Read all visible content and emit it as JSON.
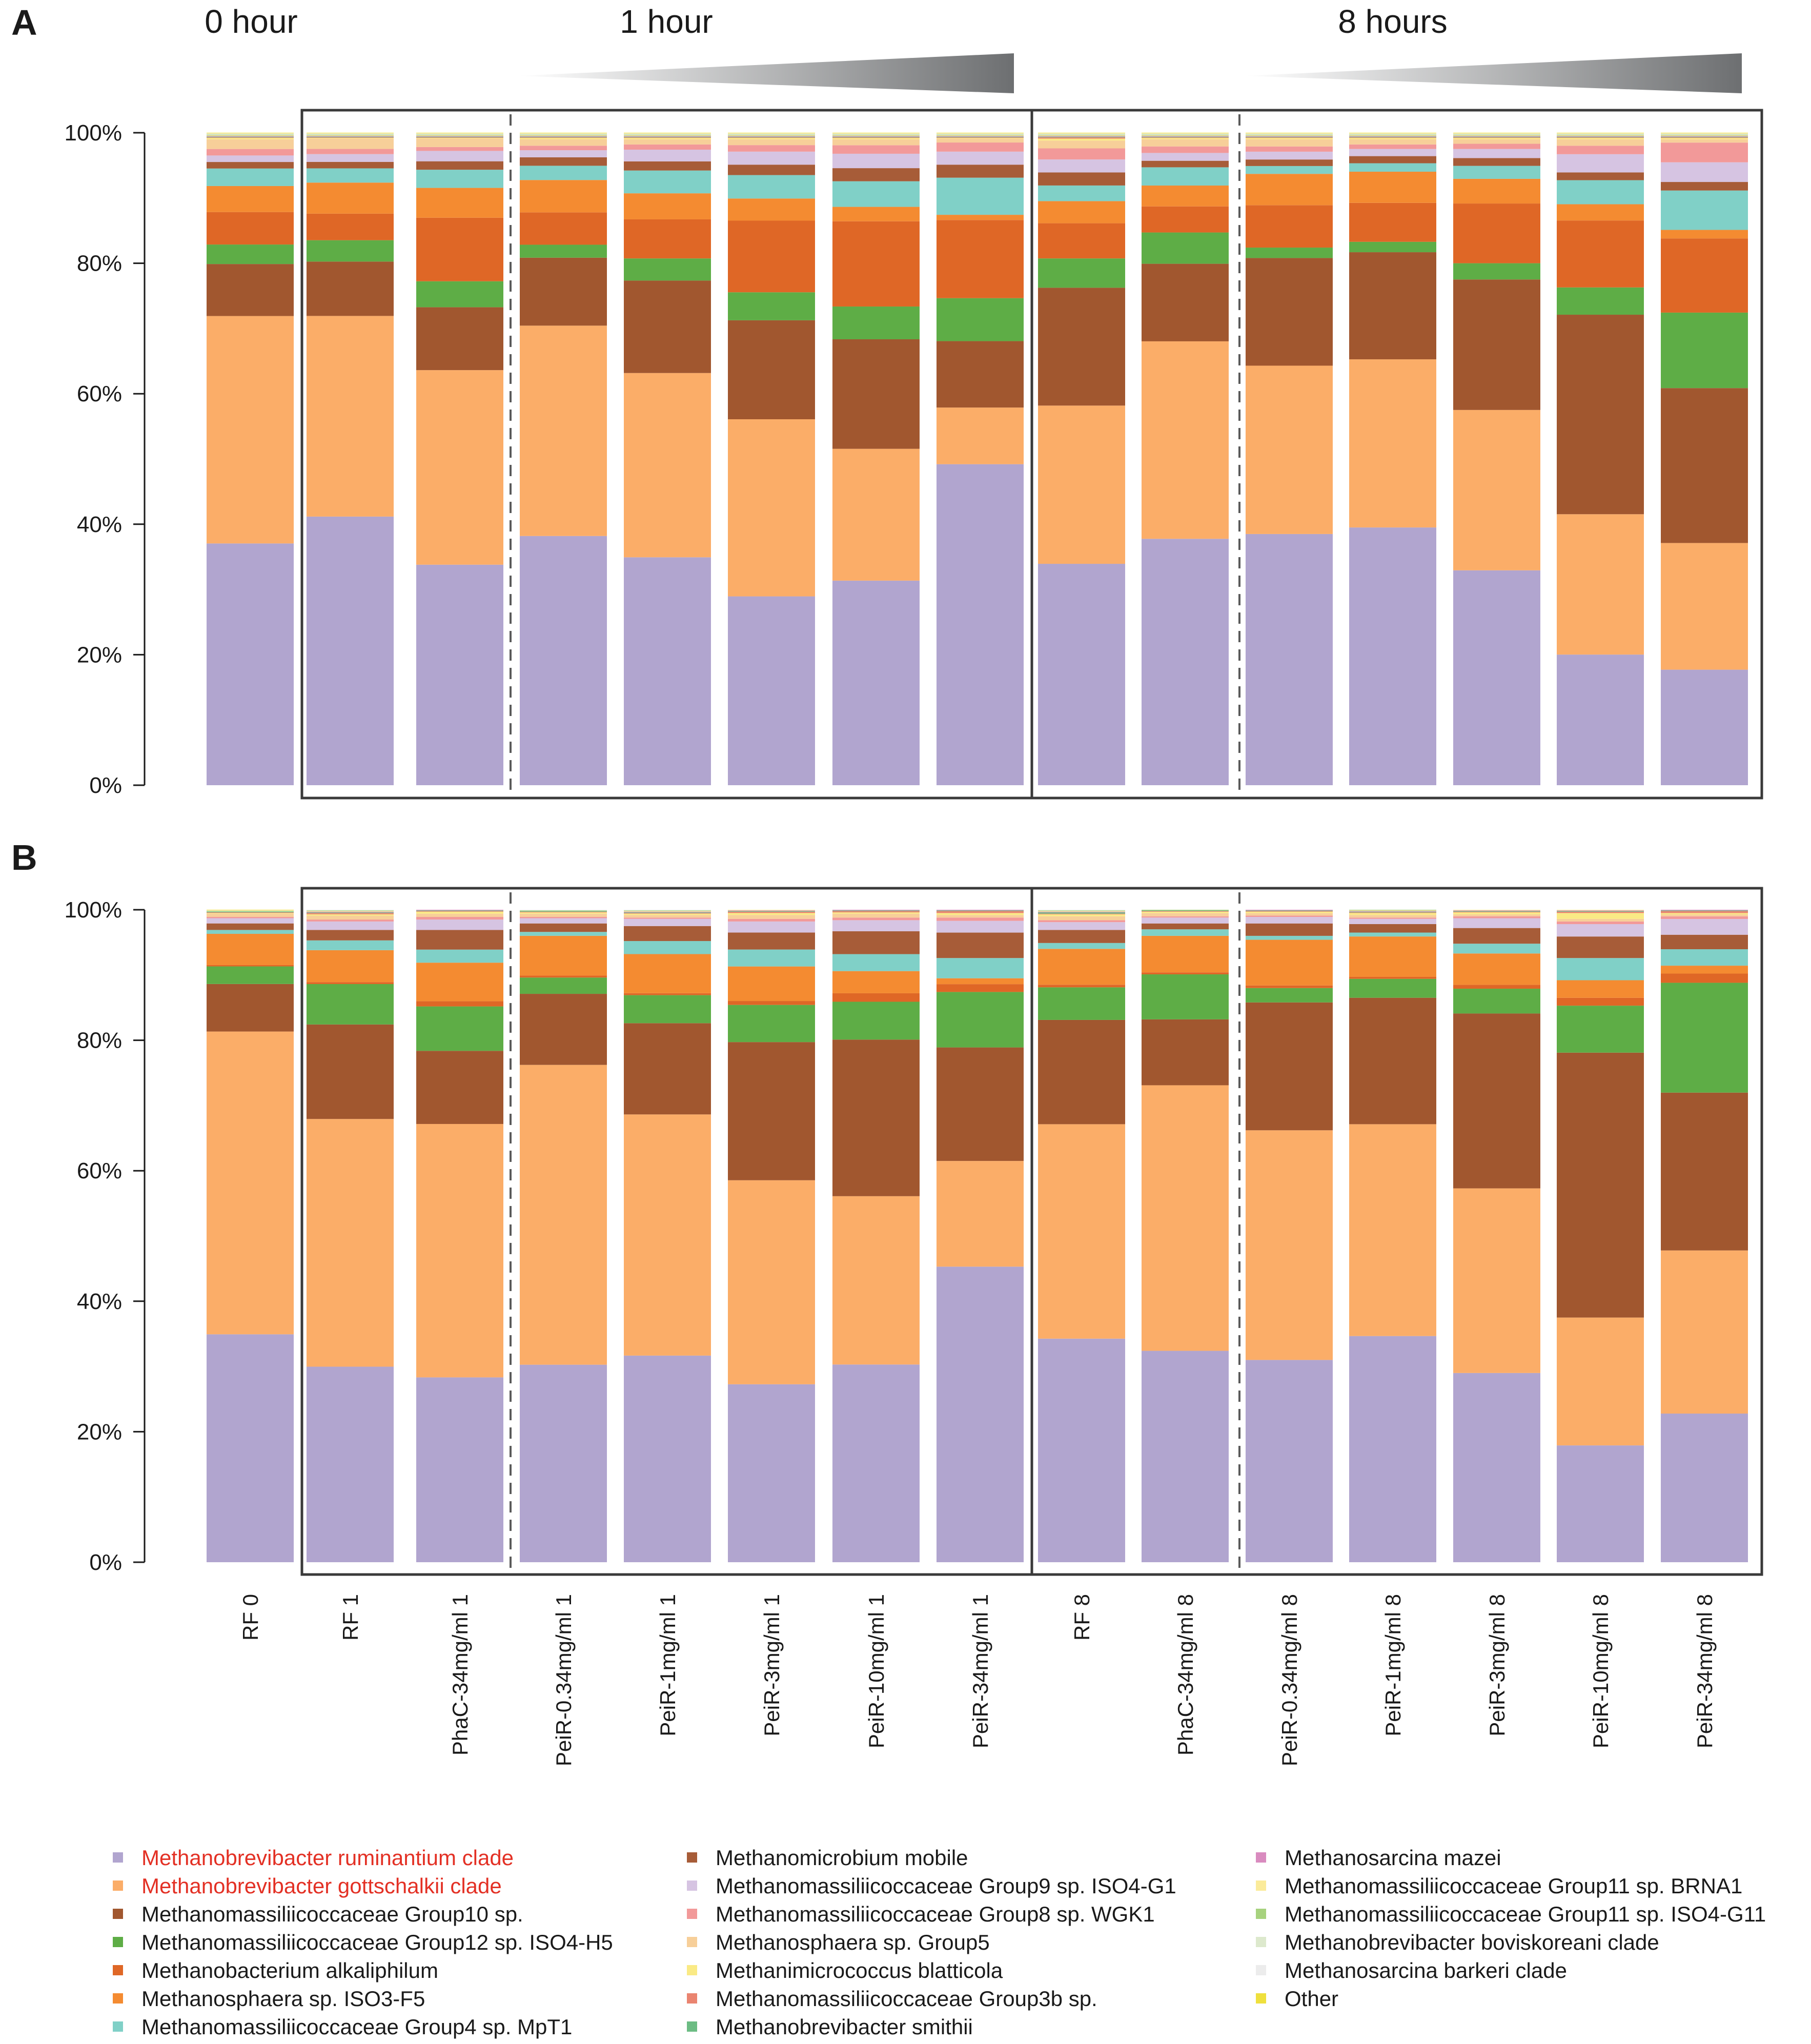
{
  "figure": {
    "panel_labels": [
      "A",
      "B"
    ],
    "time_labels": [
      "0 hour",
      "1 hour",
      "8 hours"
    ]
  },
  "legend": {
    "items": [
      {
        "label": "Methanobrevibacter ruminantium clade",
        "color": "#b1a5cf",
        "text_color": "#e33024"
      },
      {
        "label": "Methanobrevibacter gottschalkii clade",
        "color": "#fbad68",
        "text_color": "#e33024"
      },
      {
        "label": "Methanomassiliicoccaceae Group10 sp.",
        "color": "#a1572f",
        "text_color": "#1a1a1a"
      },
      {
        "label": "Methanomassiliicoccaceae Group12 sp. ISO4-H5",
        "color": "#5ead46",
        "text_color": "#1a1a1a"
      },
      {
        "label": "Methanobacterium alkaliphilum",
        "color": "#df6726",
        "text_color": "#1a1a1a"
      },
      {
        "label": "Methanosphaera sp. ISO3-F5",
        "color": "#f48b31",
        "text_color": "#1a1a1a"
      },
      {
        "label": "Methanomassiliicoccaceae Group4 sp. MpT1",
        "color": "#80d0c7",
        "text_color": "#1a1a1a"
      },
      {
        "label": "Methanomicrobium mobile",
        "color": "#a75c38",
        "text_color": "#1a1a1a"
      },
      {
        "label": "Methanomassiliicoccaceae Group9 sp. ISO4-G1",
        "color": "#d6c4e2",
        "text_color": "#1a1a1a"
      },
      {
        "label": "Methanomassiliicoccaceae Group8 sp. WGK1",
        "color": "#f29999",
        "text_color": "#1a1a1a"
      },
      {
        "label": "Methanosphaera sp. Group5",
        "color": "#f7cf99",
        "text_color": "#1a1a1a"
      },
      {
        "label": "Methanimicrococcus blatticola",
        "color": "#faea85",
        "text_color": "#1a1a1a"
      },
      {
        "label": "Methanomassiliicoccaceae Group3b sp.",
        "color": "#ea8470",
        "text_color": "#1a1a1a"
      },
      {
        "label": "Methanobrevibacter smithii",
        "color": "#6cbc83",
        "text_color": "#1a1a1a"
      },
      {
        "label": "Methanosarcina mazei",
        "color": "#d98bbf",
        "text_color": "#1a1a1a"
      },
      {
        "label": "Methanomassiliicoccaceae Group11 sp. BRNA1",
        "color": "#fbeb9a",
        "text_color": "#1a1a1a"
      },
      {
        "label": "Methanomassiliicoccaceae Group11 sp. ISO4-G11",
        "color": "#a7d27e",
        "text_color": "#1a1a1a"
      },
      {
        "label": "Methanobrevibacter boviskoreani clade",
        "color": "#dde9cd",
        "text_color": "#1a1a1a"
      },
      {
        "label": "Methanosarcina barkeri clade",
        "color": "#ececec",
        "text_color": "#1a1a1a"
      },
      {
        "label": "Other",
        "color": "#efe03d",
        "text_color": "#1a1a1a"
      }
    ]
  },
  "chart_data": [
    {
      "type": "bar",
      "stacked": true,
      "panel": "A",
      "title": "",
      "xlabel": "",
      "ylabel": "",
      "ylim": [
        0,
        100
      ],
      "yticks": [
        "0%",
        "20%",
        "40%",
        "60%",
        "80%",
        "100%"
      ],
      "categories": [
        "RF 0",
        "RF 1",
        "PhaC-34mg/ml 1",
        "PeiR-0.34mg/ml 1",
        "PeiR-1mg/ml 1",
        "PeiR-3mg/ml 1",
        "PeiR-10mg/ml 1",
        "PeiR-34mg/ml 1",
        "RF 8",
        "PhaC-34mg/ml 8",
        "PeiR-0.34mg/ml 8",
        "PeiR-1mg/ml 8",
        "PeiR-3mg/ml 8",
        "PeiR-10mg/ml 8",
        "PeiR-34mg/ml 8"
      ],
      "series": [
        {
          "name": "Methanobrevibacter ruminantium clade",
          "values": [
            37.2,
            41.5,
            34.0,
            38.5,
            35.0,
            29.0,
            31.2,
            49.3,
            34.0,
            37.8,
            38.5,
            39.7,
            33.1,
            20.1,
            17.6
          ]
        },
        {
          "name": "Methanobrevibacter gottschalkii clade",
          "values": [
            35.0,
            31.0,
            30.0,
            32.5,
            28.3,
            27.2,
            20.1,
            8.7,
            24.3,
            30.3,
            25.8,
            25.9,
            24.7,
            21.6,
            19.3
          ]
        },
        {
          "name": "Methanomassiliicoccaceae Group10 sp.",
          "values": [
            8.0,
            8.4,
            9.7,
            10.5,
            14.2,
            15.2,
            16.7,
            10.2,
            18.1,
            11.9,
            16.5,
            16.5,
            20.1,
            30.7,
            23.6
          ]
        },
        {
          "name": "Methanomassiliicoccaceae Group12 sp. ISO4-H5",
          "values": [
            3.0,
            3.3,
            4.0,
            2.0,
            3.4,
            4.3,
            5.0,
            6.6,
            4.5,
            4.8,
            1.6,
            1.6,
            2.5,
            4.2,
            11.5
          ]
        },
        {
          "name": "Methanobacterium alkaliphilum",
          "values": [
            5.0,
            4.1,
            9.8,
            5.0,
            6.0,
            11.0,
            13.0,
            12.0,
            5.4,
            4.0,
            6.5,
            6.0,
            9.2,
            10.3,
            11.3
          ]
        },
        {
          "name": "Methanosphaera sp. ISO3-F5",
          "values": [
            4.0,
            4.8,
            4.6,
            5.0,
            4.0,
            3.4,
            2.2,
            0.8,
            3.4,
            3.2,
            4.8,
            4.8,
            3.8,
            2.5,
            1.3
          ]
        },
        {
          "name": "Methanomassiliicoccaceae Group4 sp. MpT1",
          "values": [
            2.7,
            2.2,
            2.8,
            2.2,
            3.5,
            3.6,
            3.9,
            5.7,
            2.4,
            2.8,
            1.2,
            1.3,
            2.0,
            3.7,
            6.0
          ]
        },
        {
          "name": "Methanomicrobium mobile",
          "values": [
            1.0,
            1.0,
            1.3,
            1.3,
            1.4,
            1.6,
            2.0,
            2.0,
            2.0,
            1.0,
            1.0,
            1.1,
            1.2,
            1.2,
            1.3
          ]
        },
        {
          "name": "Methanomassiliicoccaceae Group9 sp. ISO4-G1",
          "values": [
            1.0,
            1.2,
            1.6,
            1.1,
            1.8,
            2.0,
            2.2,
            2.0,
            2.0,
            1.2,
            1.2,
            1.1,
            1.4,
            2.8,
            3.0
          ]
        },
        {
          "name": "Methanomassiliicoccaceae Group8 sp. WGK1",
          "values": [
            1.0,
            0.8,
            0.6,
            0.7,
            0.8,
            1.0,
            1.3,
            1.4,
            1.7,
            1.0,
            0.8,
            0.7,
            0.8,
            1.3,
            3.0
          ]
        },
        {
          "name": "Methanosphaera sp. Group5",
          "values": [
            1.5,
            1.6,
            1.3,
            1.0,
            0.8,
            0.9,
            0.9,
            0.6,
            1.2,
            1.1,
            1.1,
            0.8,
            0.7,
            1.0,
            0.5
          ]
        },
        {
          "name": "Methanimicrococcus blatticola",
          "values": [
            0.2,
            0.1,
            0.1,
            0.2,
            0.2,
            0.2,
            0.2,
            0.1,
            0.3,
            0.2,
            0.2,
            0.2,
            0.2,
            0.2,
            0.2
          ]
        },
        {
          "name": "Methanomassiliicoccaceae Group3b sp.",
          "values": [
            0.1,
            0.1,
            0.1,
            0.1,
            0.1,
            0.1,
            0.1,
            0.1,
            0.2,
            0.1,
            0.1,
            0.1,
            0.1,
            0.1,
            0.1
          ]
        },
        {
          "name": "Methanobrevibacter smithii",
          "values": [
            0.1,
            0.1,
            0.1,
            0.1,
            0.1,
            0.1,
            0.1,
            0.1,
            0.1,
            0.1,
            0.1,
            0.1,
            0.1,
            0.1,
            0.1
          ]
        },
        {
          "name": "Methanosarcina mazei",
          "values": [
            0.1,
            0.1,
            0.1,
            0.1,
            0.1,
            0.1,
            0.1,
            0.1,
            0.1,
            0.1,
            0.1,
            0.1,
            0.1,
            0.1,
            0.1
          ]
        },
        {
          "name": "Methanomassiliicoccaceae Group11 sp. BRNA1",
          "values": [
            0.1,
            0.1,
            0.1,
            0.1,
            0.1,
            0.1,
            0.1,
            0.1,
            0.1,
            0.1,
            0.1,
            0.1,
            0.1,
            0.1,
            0.1
          ]
        },
        {
          "name": "Methanomassiliicoccaceae Group11 sp. ISO4-G11",
          "values": [
            0.1,
            0.1,
            0.1,
            0.1,
            0.1,
            0.1,
            0.1,
            0.1,
            0.1,
            0.1,
            0.1,
            0.1,
            0.1,
            0.1,
            0.1
          ]
        },
        {
          "name": "Methanobrevibacter boviskoreani clade",
          "values": [
            0.1,
            0.1,
            0.1,
            0.1,
            0.1,
            0.1,
            0.1,
            0.1,
            0.1,
            0.1,
            0.1,
            0.1,
            0.1,
            0.1,
            0.1
          ]
        },
        {
          "name": "Methanosarcina barkeri clade",
          "values": [
            0.1,
            0.1,
            0.1,
            0.1,
            0.1,
            0.1,
            0.1,
            0.1,
            0.1,
            0.1,
            0.1,
            0.1,
            0.1,
            0.1,
            0.1
          ]
        },
        {
          "name": "Other",
          "values": [
            0.1,
            0.1,
            0.1,
            0.1,
            0.1,
            0.1,
            0.1,
            0.1,
            0.1,
            0.1,
            0.1,
            0.1,
            0.1,
            0.1,
            0.1
          ]
        }
      ]
    },
    {
      "type": "bar",
      "stacked": true,
      "panel": "B",
      "title": "",
      "xlabel": "",
      "ylabel": "",
      "ylim": [
        0,
        100
      ],
      "yticks": [
        "0%",
        "20%",
        "40%",
        "60%",
        "80%",
        "100%"
      ],
      "categories": [
        "RF 0",
        "RF 1",
        "PhaC-34mg/ml 1",
        "PeiR-0.34mg/ml 1",
        "PeiR-1mg/ml 1",
        "PeiR-3mg/ml 1",
        "PeiR-10mg/ml 1",
        "PeiR-34mg/ml 1",
        "RF 8",
        "PhaC-34mg/ml 8",
        "PeiR-0.34mg/ml 8",
        "PeiR-1mg/ml 8",
        "PeiR-3mg/ml 8",
        "PeiR-10mg/ml 8",
        "PeiR-34mg/ml 8"
      ],
      "series": [
        {
          "name": "Methanobrevibacter ruminantium clade",
          "values": [
            35.0,
            30.0,
            28.3,
            30.3,
            31.7,
            27.3,
            30.3,
            45.3,
            34.3,
            32.4,
            31.0,
            34.7,
            29.0,
            17.9,
            22.6
          ]
        },
        {
          "name": "Methanobrevibacter gottschalkii clade",
          "values": [
            46.5,
            38.0,
            38.8,
            46.0,
            37.0,
            31.3,
            25.8,
            16.2,
            32.9,
            40.7,
            35.2,
            32.5,
            28.3,
            19.6,
            24.8
          ]
        },
        {
          "name": "Methanomassiliicoccaceae Group10 sp.",
          "values": [
            7.3,
            14.5,
            11.2,
            10.9,
            14.0,
            21.2,
            24.0,
            17.4,
            16.0,
            10.1,
            19.6,
            19.4,
            26.8,
            40.6,
            24.0
          ]
        },
        {
          "name": "Methanomassiliicoccaceae Group12 sp. ISO4-H5",
          "values": [
            2.7,
            6.2,
            6.8,
            2.5,
            4.3,
            5.7,
            5.8,
            8.5,
            5.0,
            6.9,
            2.2,
            2.9,
            3.8,
            7.2,
            16.7
          ]
        },
        {
          "name": "Methanobacterium alkaliphilum",
          "values": [
            0.2,
            0.3,
            0.8,
            0.3,
            0.3,
            0.6,
            1.3,
            1.2,
            0.4,
            0.3,
            0.4,
            0.3,
            0.6,
            1.2,
            1.4
          ]
        },
        {
          "name": "Methanosphaera sp. ISO3-F5",
          "values": [
            4.8,
            4.9,
            5.9,
            6.1,
            6.0,
            5.3,
            3.4,
            0.9,
            5.5,
            5.6,
            7.0,
            6.2,
            4.8,
            2.7,
            1.2
          ]
        },
        {
          "name": "Methanomassiliicoccaceae Group4 sp. MpT1",
          "values": [
            0.6,
            1.5,
            2.0,
            0.6,
            2.0,
            2.6,
            2.6,
            3.1,
            0.9,
            1.0,
            0.6,
            0.6,
            1.5,
            3.4,
            2.5
          ]
        },
        {
          "name": "Methanomicrobium mobile",
          "values": [
            1.0,
            1.6,
            3.0,
            1.3,
            2.3,
            2.6,
            3.5,
            3.9,
            2.0,
            0.9,
            1.9,
            1.3,
            2.4,
            3.3,
            2.2
          ]
        },
        {
          "name": "Methanomassiliicoccaceae Group9 sp. ISO4-G1",
          "values": [
            0.8,
            1.3,
            1.6,
            0.8,
            1.1,
            1.7,
            1.7,
            1.8,
            1.2,
            0.9,
            1.0,
            0.8,
            1.5,
            1.9,
            2.4
          ]
        },
        {
          "name": "Methanomassiliicoccaceae Group8 sp. WGK1",
          "values": [
            0.2,
            0.3,
            0.4,
            0.2,
            0.2,
            0.4,
            0.4,
            0.5,
            0.3,
            0.2,
            0.2,
            0.2,
            0.3,
            0.4,
            0.4
          ]
        },
        {
          "name": "Methanosphaera sp. Group5",
          "values": [
            0.5,
            0.6,
            0.5,
            0.5,
            0.4,
            0.6,
            0.6,
            0.4,
            0.6,
            0.5,
            0.4,
            0.4,
            0.3,
            0.4,
            0.3
          ]
        },
        {
          "name": "Methanimicrococcus blatticola",
          "values": [
            0.1,
            0.2,
            0.3,
            0.2,
            0.2,
            0.3,
            0.2,
            0.3,
            0.3,
            0.2,
            0.2,
            0.3,
            0.3,
            0.9,
            0.2
          ]
        },
        {
          "name": "Methanomassiliicoccaceae Group3b sp.",
          "values": [
            0.1,
            0.2,
            0.1,
            0.1,
            0.1,
            0.2,
            0.2,
            0.3,
            0.1,
            0.1,
            0.1,
            0.1,
            0.1,
            0.2,
            0.3
          ]
        },
        {
          "name": "Methanobrevibacter smithii",
          "values": [
            0.1,
            0.1,
            0.1,
            0.1,
            0.1,
            0.1,
            0.1,
            0.1,
            0.2,
            0.1,
            0.1,
            0.1,
            0.1,
            0.1,
            0.1
          ]
        },
        {
          "name": "Methanosarcina mazei",
          "values": [
            0.0,
            0.1,
            0.1,
            0.0,
            0.1,
            0.1,
            0.1,
            0.1,
            0.1,
            0.0,
            0.1,
            0.1,
            0.1,
            0.1,
            0.1
          ]
        },
        {
          "name": "Methanomassiliicoccaceae Group11 sp. BRNA1",
          "values": [
            0.0,
            0.1,
            0.0,
            0.0,
            0.1,
            0.1,
            0.0,
            0.0,
            0.1,
            0.0,
            0.0,
            0.1,
            0.1,
            0.1,
            0.0
          ]
        },
        {
          "name": "Methanomassiliicoccaceae Group11 sp. ISO4-G11",
          "values": [
            0.1,
            0.1,
            0.0,
            0.1,
            0.1,
            0.0,
            0.0,
            0.0,
            0.1,
            0.1,
            0.0,
            0.1,
            0.0,
            0.0,
            0.0
          ]
        },
        {
          "name": "Methanobrevibacter boviskoreani clade",
          "values": [
            0.0,
            0.0,
            0.0,
            0.0,
            0.0,
            0.0,
            0.0,
            0.0,
            0.0,
            0.0,
            0.0,
            0.0,
            0.0,
            0.0,
            0.0
          ]
        },
        {
          "name": "Methanosarcina barkeri clade",
          "values": [
            0.1,
            0.1,
            0.0,
            0.1,
            0.1,
            0.0,
            0.0,
            0.0,
            0.1,
            0.0,
            0.0,
            0.0,
            0.0,
            0.0,
            0.0
          ]
        },
        {
          "name": "Other",
          "values": [
            0.1,
            0.0,
            0.0,
            0.0,
            0.0,
            0.0,
            0.0,
            0.0,
            0.0,
            0.0,
            0.0,
            0.0,
            0.0,
            0.0,
            0.0
          ]
        }
      ]
    }
  ]
}
